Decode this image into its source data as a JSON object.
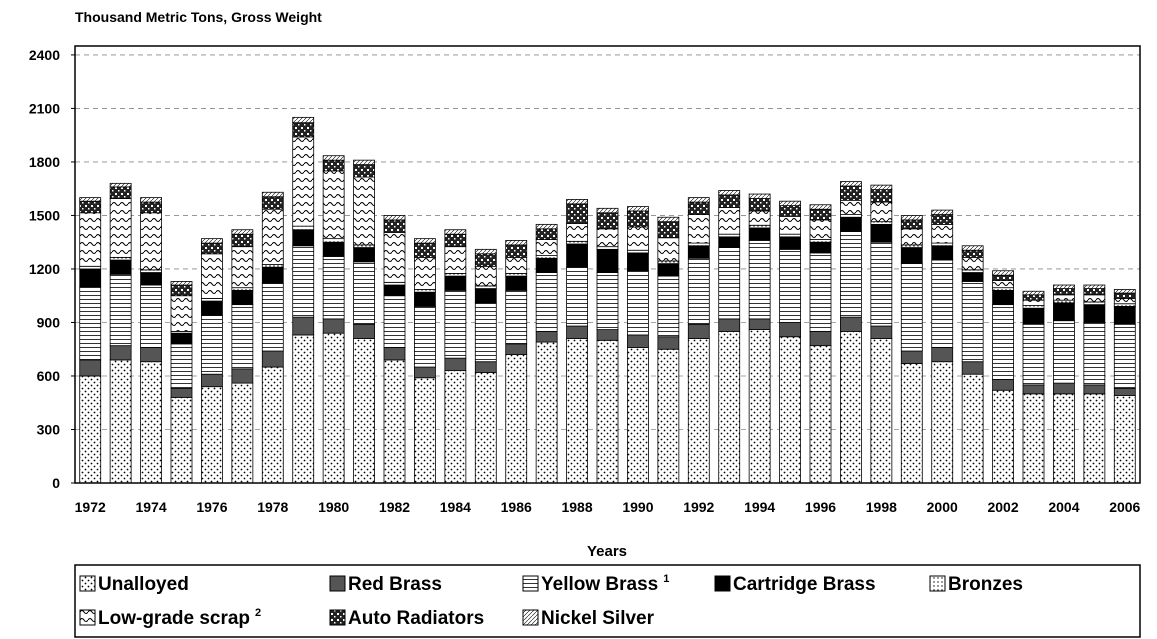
{
  "chart_data": {
    "type": "stacked_bar",
    "ylabel": "Thousand Metric Tons, Gross Weight",
    "xlabel": "Years",
    "categories": [
      "1972",
      null,
      "1974",
      null,
      "1976",
      null,
      "1978",
      null,
      "1980",
      null,
      "1982",
      null,
      "1984",
      null,
      "1986",
      null,
      "1988",
      null,
      "1990",
      null,
      "1992",
      null,
      "1994",
      null,
      "1996",
      null,
      "1998",
      null,
      "2000",
      null,
      "2002",
      null,
      "2004",
      null,
      "2006"
    ],
    "ylim": [
      0,
      2450
    ],
    "yticks": [
      0,
      300,
      600,
      900,
      1200,
      1500,
      1800,
      2100,
      2400
    ],
    "grid": true,
    "series": [
      {
        "name": "Unalloyed",
        "color": "#000000",
        "pattern": "dots",
        "values": [
          600,
          690,
          680,
          480,
          540,
          560,
          650,
          830,
          840,
          810,
          690,
          590,
          630,
          620,
          720,
          790,
          810,
          800,
          760,
          750,
          810,
          850,
          860,
          820,
          770,
          850,
          810,
          670,
          680,
          610,
          520,
          500,
          500,
          500,
          490
        ]
      },
      {
        "name": "Red Brass",
        "color": "#555555",
        "pattern": "solid",
        "values": [
          90,
          80,
          80,
          50,
          70,
          80,
          90,
          100,
          80,
          80,
          70,
          60,
          70,
          60,
          60,
          60,
          70,
          60,
          70,
          70,
          80,
          70,
          60,
          80,
          80,
          80,
          70,
          70,
          80,
          70,
          60,
          50,
          60,
          50,
          40
        ]
      },
      {
        "name": "Yellow Brass",
        "note": "1",
        "color": "#000000",
        "pattern": "hlines",
        "values": [
          410,
          400,
          350,
          250,
          330,
          360,
          380,
          400,
          350,
          350,
          290,
          340,
          380,
          330,
          300,
          330,
          330,
          320,
          360,
          340,
          370,
          400,
          440,
          410,
          440,
          480,
          470,
          490,
          490,
          450,
          420,
          340,
          350,
          350,
          360
        ]
      },
      {
        "name": "Cartridge Brass",
        "color": "#000000",
        "pattern": "solid",
        "values": [
          100,
          80,
          70,
          60,
          80,
          80,
          90,
          90,
          80,
          80,
          60,
          80,
          80,
          80,
          80,
          80,
          130,
          130,
          100,
          70,
          70,
          60,
          70,
          70,
          60,
          80,
          100,
          90,
          80,
          50,
          80,
          90,
          100,
          100,
          100
        ]
      },
      {
        "name": "Bronzes",
        "color": "#000000",
        "pattern": "grid",
        "values": [
          15,
          15,
          15,
          10,
          15,
          15,
          15,
          20,
          20,
          15,
          15,
          15,
          15,
          15,
          15,
          15,
          15,
          15,
          15,
          15,
          15,
          15,
          15,
          15,
          15,
          15,
          15,
          15,
          15,
          15,
          15,
          15,
          15,
          15,
          15
        ]
      },
      {
        "name": "Low-grade scrap",
        "note": "2",
        "color": "#000000",
        "pattern": "wavy",
        "values": [
          300,
          330,
          320,
          200,
          250,
          230,
          310,
          500,
          380,
          380,
          280,
          180,
          150,
          110,
          90,
          90,
          100,
          100,
          130,
          130,
          160,
          150,
          80,
          100,
          110,
          80,
          110,
          90,
          105,
          70,
          40,
          30,
          30,
          40,
          30
        ]
      },
      {
        "name": "Auto Radiators",
        "color": "#222222",
        "pattern": "checker",
        "values": [
          65,
          65,
          60,
          60,
          60,
          70,
          70,
          80,
          60,
          70,
          70,
          80,
          70,
          70,
          70,
          60,
          110,
          90,
          90,
          90,
          70,
          70,
          70,
          60,
          60,
          80,
          70,
          50,
          55,
          40,
          30,
          30,
          35,
          35,
          30
        ]
      },
      {
        "name": "Nickel Silver",
        "color": "#000000",
        "pattern": "diag",
        "values": [
          20,
          20,
          25,
          20,
          25,
          25,
          25,
          30,
          25,
          25,
          25,
          25,
          25,
          25,
          25,
          25,
          25,
          25,
          25,
          25,
          25,
          25,
          25,
          25,
          25,
          25,
          25,
          25,
          25,
          25,
          25,
          20,
          20,
          20,
          20
        ]
      }
    ]
  }
}
